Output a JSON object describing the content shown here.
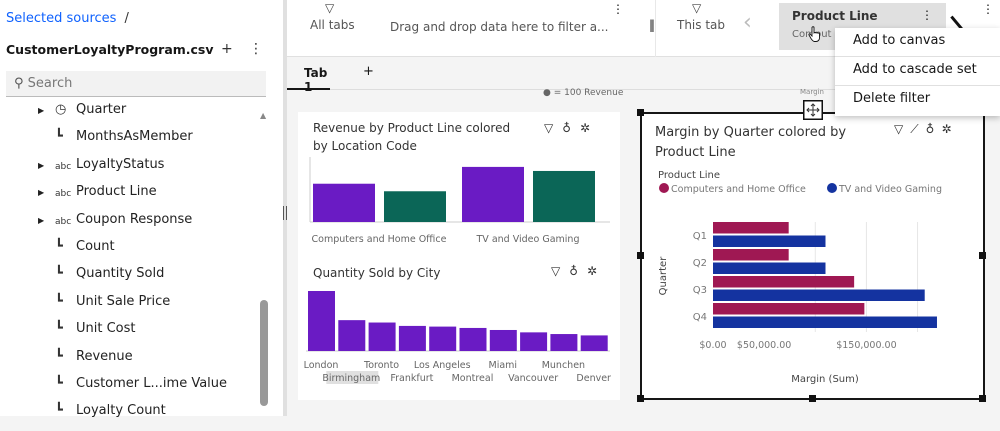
{
  "sidebar": {
    "breadcrumb": "Selected sources",
    "breadcrumb_sep": "/",
    "source_name": "CustomerLoyaltyProgram.csv",
    "add_icon": "+",
    "more_icon": "⋮",
    "search_placeholder": "Search",
    "items": [
      {
        "label": "Quarter",
        "icon": "clock-icon",
        "expandable": true
      },
      {
        "label": "MonthsAsMember",
        "icon": "measure-icon",
        "expandable": false
      },
      {
        "label": "LoyaltyStatus",
        "icon": "abc-icon",
        "expandable": true
      },
      {
        "label": "Product Line",
        "icon": "abc-icon",
        "expandable": true
      },
      {
        "label": "Coupon Response",
        "icon": "abc-icon",
        "expandable": true
      },
      {
        "label": "Count",
        "icon": "measure-icon",
        "expandable": false
      },
      {
        "label": "Quantity Sold",
        "icon": "measure-icon",
        "expandable": false
      },
      {
        "label": "Unit Sale Price",
        "icon": "measure-icon",
        "expandable": false
      },
      {
        "label": "Unit Cost",
        "icon": "measure-icon",
        "expandable": false
      },
      {
        "label": "Revenue",
        "icon": "measure-icon",
        "expandable": false
      },
      {
        "label": "Customer L...ime Value",
        "icon": "measure-icon",
        "expandable": false
      },
      {
        "label": "Loyalty Count",
        "icon": "measure-icon",
        "expandable": false
      }
    ]
  },
  "filters": {
    "all_tabs": "All tabs",
    "drop_hint": "Drag and drop data here to filter a...",
    "this_tab": "This tab",
    "active_filter": {
      "title": "Product Line",
      "value": "Computers..."
    }
  },
  "context_menu": [
    "Add to canvas",
    "Add to cascade set",
    "Delete filter"
  ],
  "tabs": {
    "items": [
      "Tab 1"
    ],
    "add": "+"
  },
  "canvas": {
    "legend_fragment": "= 100 Revenue",
    "margin_fragment": "Margin"
  },
  "colors": {
    "purple": "#6a1bc4",
    "teal": "#0b6657",
    "magenta": "#9f1853",
    "navy": "#1433a0"
  },
  "chart_data": [
    {
      "type": "bar",
      "title": "Revenue by Product Line colored by Location Code",
      "categories": [
        "Computers and Home Office",
        "TV and Video Gaming"
      ],
      "series": [
        {
          "values": [
            66,
            95
          ],
          "color": "#6a1bc4"
        },
        {
          "values": [
            53,
            88
          ],
          "color": "#0b6657"
        }
      ]
    },
    {
      "type": "bar",
      "title": "Quantity Sold by City",
      "categories": [
        "London",
        "Birmingham",
        "Toronto",
        "Frankfurt",
        "Los Angeles",
        "Montreal",
        "Miami",
        "Vancouver",
        "Munchen",
        "Denver"
      ],
      "values": [
        177,
        91,
        84,
        74,
        72,
        68,
        62,
        55,
        50,
        46
      ],
      "highlighted": "Birmingham"
    },
    {
      "type": "bar",
      "orientation": "horizontal",
      "title": "Margin by Quarter colored by Product Line",
      "legend_title": "Product Line",
      "ylabel": "Quarter",
      "xlabel": "Margin (Sum)",
      "categories": [
        "Q1",
        "Q2",
        "Q3",
        "Q4"
      ],
      "xticks": [
        "$0.00",
        "$50,000.00",
        "$150,000.00"
      ],
      "xlim": [
        0,
        220000
      ],
      "series": [
        {
          "name": "Computers and Home Office",
          "values": [
            74000,
            74000,
            138000,
            148000
          ],
          "color": "#9f1853"
        },
        {
          "name": "TV and Video Gaming",
          "values": [
            110000,
            110000,
            207000,
            219000
          ],
          "color": "#1433a0"
        }
      ]
    }
  ]
}
